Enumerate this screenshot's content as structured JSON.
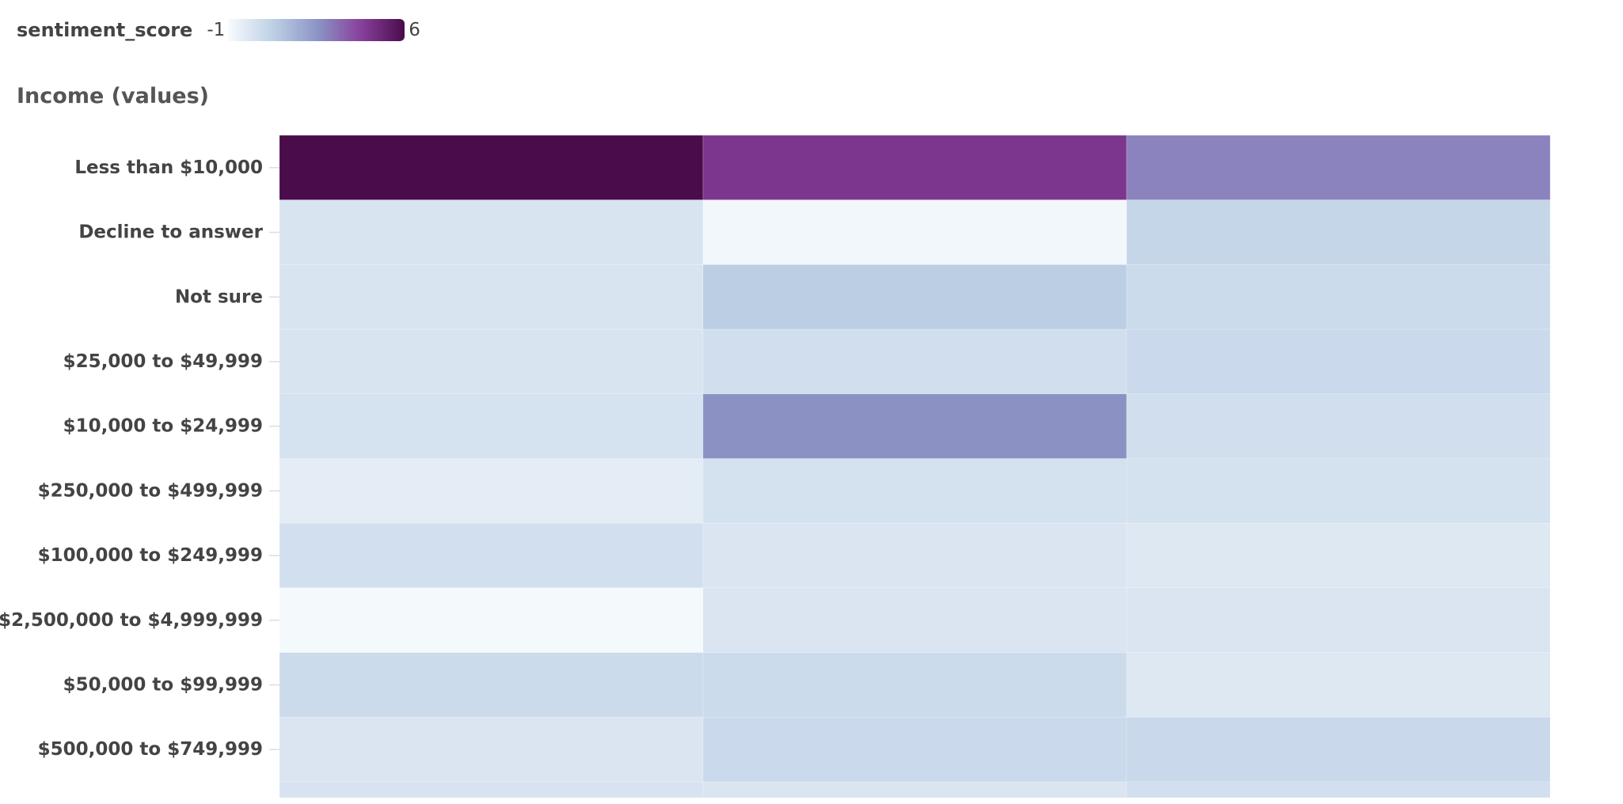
{
  "chart_data": {
    "type": "heatmap",
    "row_title": "Income (values)",
    "legend": {
      "title": "sentiment_score",
      "min_label": "-1",
      "max_label": "6",
      "range": [
        -1,
        6
      ],
      "colors": [
        "#f7fbfd",
        "#bfd1e6",
        "#8c96c6",
        "#88419d",
        "#4a0c4b"
      ]
    },
    "rows": [
      "Less than $10,000",
      "Decline to answer",
      "Not sure",
      "$25,000 to $49,999",
      "$10,000 to $24,999",
      "$250,000 to $499,999",
      "$100,000 to $249,999",
      "$2,500,000 to $4,999,999",
      "$50,000 to $99,999",
      "$500,000 to $749,999",
      ""
    ],
    "columns": [
      "",
      "",
      ""
    ],
    "values": [
      [
        6.0,
        4.6,
        2.9
      ],
      [
        -0.05,
        -0.85,
        0.55
      ],
      [
        -0.05,
        0.85,
        0.35
      ],
      [
        -0.05,
        0.2,
        0.4
      ],
      [
        0.05,
        2.6,
        0.2
      ],
      [
        -0.4,
        0.1,
        0.1
      ],
      [
        0.15,
        -0.1,
        -0.2
      ],
      [
        -0.9,
        -0.1,
        -0.1
      ],
      [
        0.35,
        0.35,
        -0.2
      ],
      [
        -0.1,
        0.4,
        0.45
      ],
      [
        0.0,
        -0.1,
        0.15
      ]
    ]
  }
}
